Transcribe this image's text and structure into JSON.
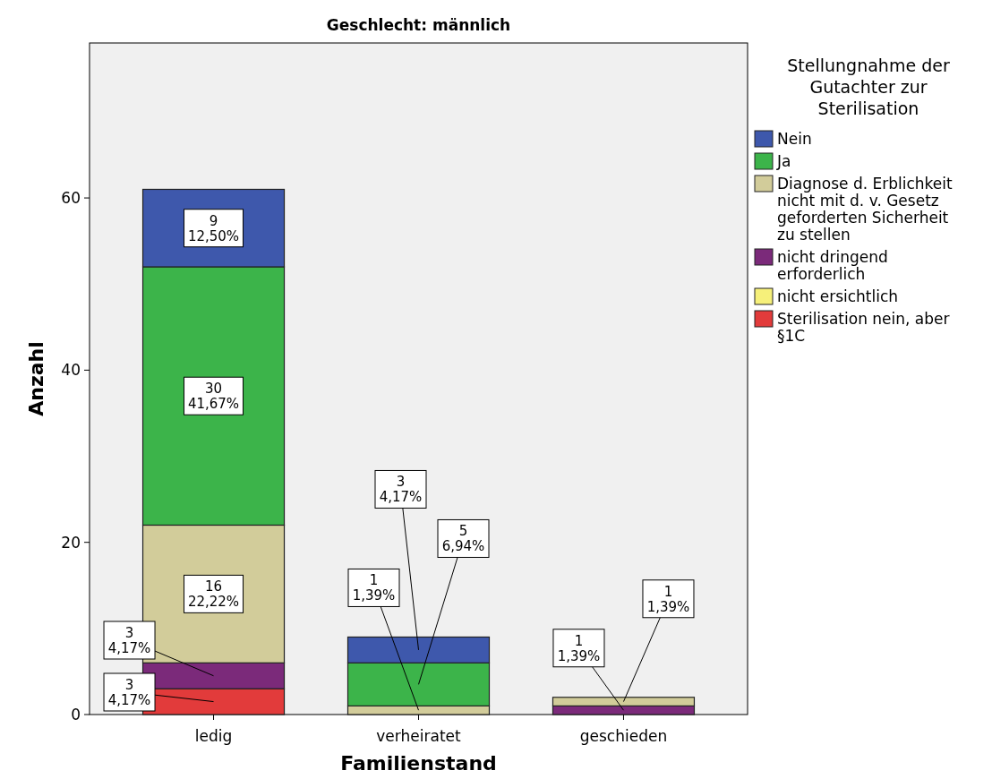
{
  "chart_data": {
    "type": "bar",
    "stacked": true,
    "title": "Geschlecht: männlich",
    "xlabel": "Familienstand",
    "ylabel": "Anzahl",
    "legend_title": "Stellungnahme der Gutachter zur Sterilisation",
    "legend": "right",
    "categories": [
      "ledig",
      "verheiratet",
      "geschieden"
    ],
    "ylim": [
      0,
      78
    ],
    "yticks": [
      0,
      20,
      40,
      60
    ],
    "grid": false,
    "series": [
      {
        "name": "Sterilisation nein, aber §1C",
        "color": "#e23b3b",
        "values": [
          3,
          0,
          0
        ],
        "value_labels": [
          "3\n4,17%",
          null,
          null
        ]
      },
      {
        "name": "nicht ersichtlich",
        "color": "#f6f07a",
        "values": [
          0,
          0,
          0
        ],
        "value_labels": [
          null,
          null,
          null
        ]
      },
      {
        "name": "nicht dringend erforderlich",
        "color": "#7b2a7a",
        "values": [
          3,
          0,
          1
        ],
        "value_labels": [
          "3\n4,17%",
          null,
          "1\n1,39%"
        ]
      },
      {
        "name": "Diagnose d. Erblichkeit nicht mit d. v. Gesetz geforderten Sicherheit zu stellen",
        "color": "#d2cc9a",
        "values": [
          16,
          1,
          1
        ],
        "value_labels": [
          "16\n22,22%",
          "1\n1,39%",
          "1\n1,39%"
        ]
      },
      {
        "name": "Ja",
        "color": "#3cb44a",
        "values": [
          30,
          5,
          0
        ],
        "value_labels": [
          "30\n41,67%",
          "5\n6,94%",
          null
        ]
      },
      {
        "name": "Nein",
        "color": "#3e58ac",
        "values": [
          9,
          3,
          0
        ],
        "value_labels": [
          "9\n12,50%",
          "3\n4,17%",
          null
        ]
      }
    ]
  }
}
